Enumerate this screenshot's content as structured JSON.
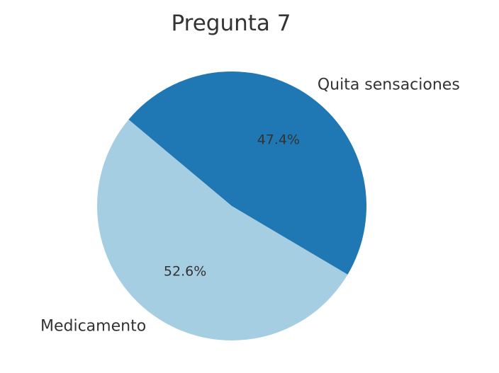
{
  "chart_data": {
    "type": "pie",
    "title": "Pregunta 7",
    "categories": [
      "Medicamento",
      "Quita sensaciones"
    ],
    "values": [
      52.6,
      47.4
    ],
    "value_labels": [
      "52.6%",
      "47.4%"
    ],
    "colors": [
      "#a6cee3",
      "#1f78b4"
    ],
    "start_angle_deg": 140,
    "direction": "counterclockwise"
  }
}
